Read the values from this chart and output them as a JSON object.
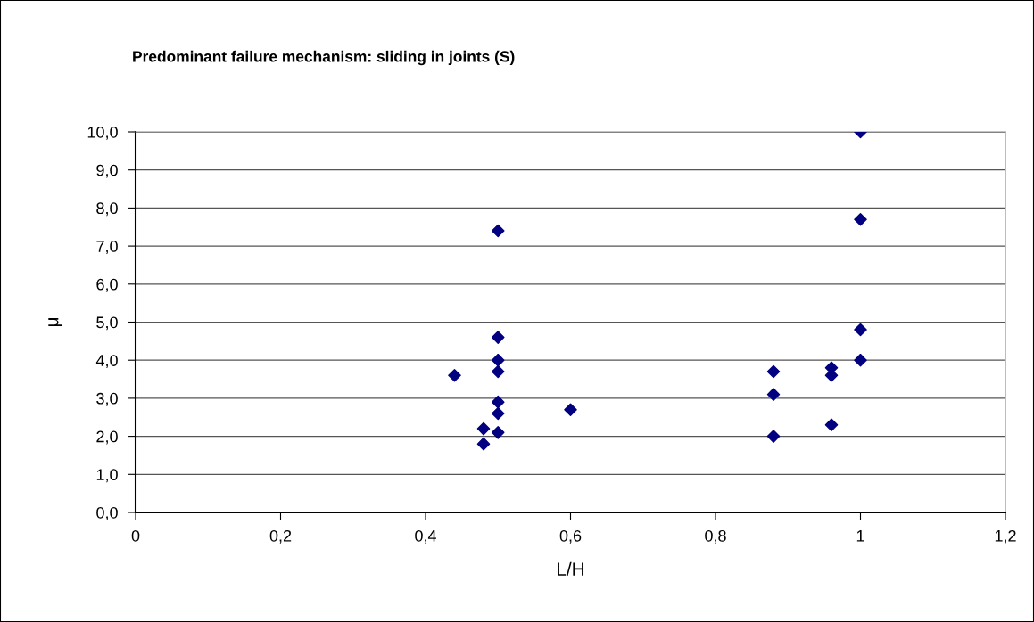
{
  "chart_data": {
    "type": "scatter",
    "title": "Predominant failure mechanism: sliding in joints (S)",
    "xlabel": "L/H",
    "ylabel": "μ",
    "series": [
      {
        "color": "#000080",
        "x": [
          0.44,
          0.48,
          0.48,
          0.5,
          0.5,
          0.5,
          0.5,
          0.5,
          0.5,
          0.5,
          0.6,
          0.88,
          0.88,
          0.88,
          0.96,
          0.96,
          0.96,
          1,
          1,
          1,
          1
        ],
        "values": [
          3.6,
          2.2,
          1.8,
          7.4,
          4.6,
          4.0,
          3.7,
          2.9,
          2.6,
          2.1,
          2.7,
          3.7,
          3.1,
          2.0,
          3.8,
          3.6,
          2.3,
          10.0,
          7.7,
          4.8,
          4.0
        ]
      }
    ],
    "xlim": [
      0,
      1.2
    ],
    "xticks": [
      0,
      {
        "value": 0.2,
        "label": "0,2"
      },
      {
        "value": 0.4,
        "label": "0,4"
      },
      {
        "value": 0.6,
        "label": "0,6"
      },
      {
        "value": 0.8,
        "label": "0,8"
      },
      {
        "value": 1,
        "label": "1"
      },
      {
        "value": 1.2,
        "label": "1,2"
      }
    ],
    "ylim": [
      0,
      10
    ],
    "yticks": [
      {
        "value": 0,
        "label": "0,0"
      },
      {
        "value": 1,
        "label": "1,0"
      },
      {
        "value": 2,
        "label": "2,0"
      },
      {
        "value": 3,
        "label": "3,0"
      },
      {
        "value": 4,
        "label": "4,0"
      },
      {
        "value": 5,
        "label": "5,0"
      },
      {
        "value": 6,
        "label": "6,0"
      },
      {
        "value": 7,
        "label": "7,0"
      },
      {
        "value": 8,
        "label": "8,0"
      },
      {
        "value": 9,
        "label": "9,0"
      },
      {
        "value": 10,
        "label": "10,0"
      }
    ],
    "grid": "y",
    "marker": "diamond",
    "legend": false
  }
}
